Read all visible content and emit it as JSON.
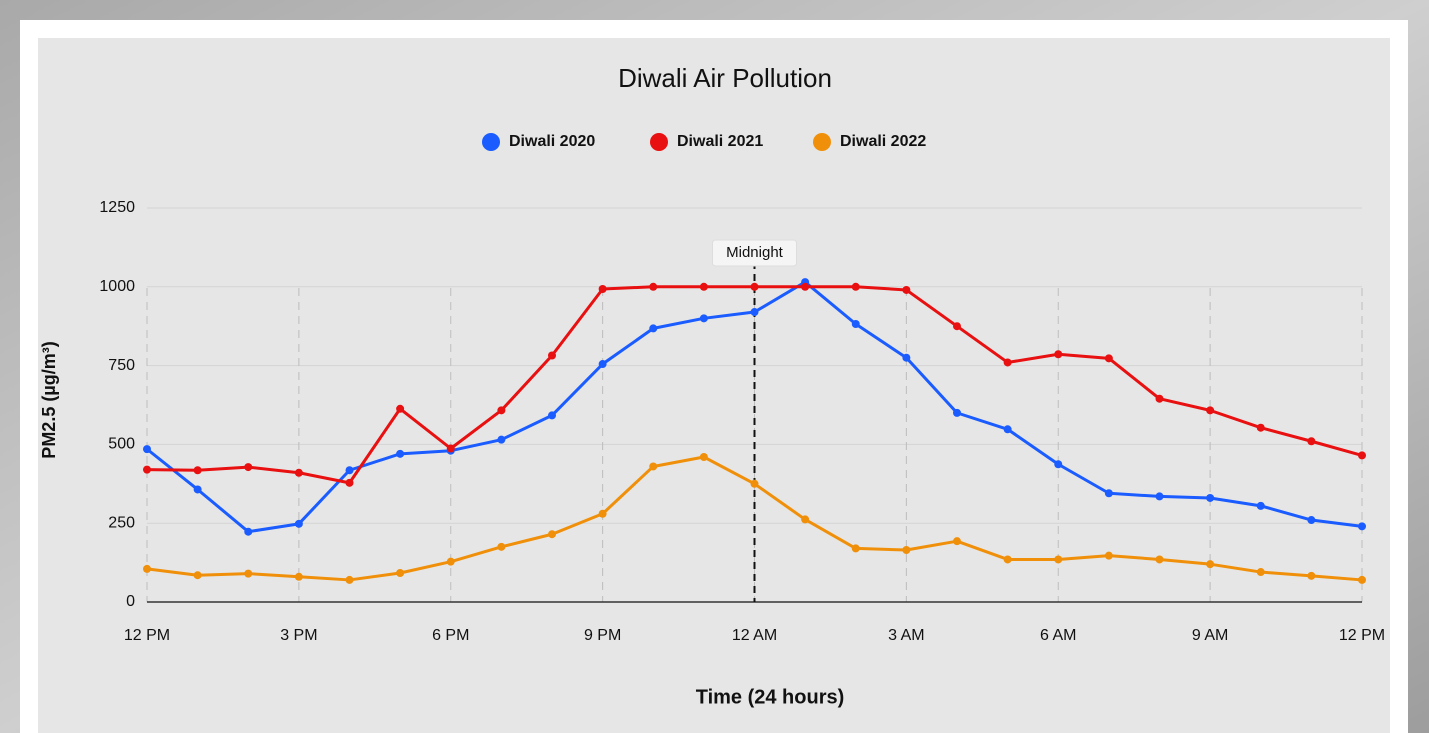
{
  "chart_data": {
    "type": "line",
    "title": "Diwali Air Pollution",
    "x_label": "Time (24 hours)",
    "y_label": "PM2.5 (µg/m³)",
    "x": [
      0,
      1,
      2,
      3,
      4,
      5,
      6,
      7,
      8,
      9,
      10,
      11,
      12,
      13,
      14,
      15,
      16,
      17,
      18,
      19,
      20,
      21,
      22,
      23,
      24
    ],
    "xlim": [
      0,
      24
    ],
    "xticks": [
      {
        "value": 0,
        "label": "12 PM"
      },
      {
        "value": 3,
        "label": "3 PM"
      },
      {
        "value": 6,
        "label": "6 PM"
      },
      {
        "value": 9,
        "label": "9 PM"
      },
      {
        "value": 12,
        "label": "12 AM"
      },
      {
        "value": 15,
        "label": "3 AM"
      },
      {
        "value": 18,
        "label": "6 AM"
      },
      {
        "value": 21,
        "label": "9 AM"
      },
      {
        "value": 24,
        "label": "12 PM"
      }
    ],
    "ylim": [
      0,
      1250
    ],
    "yticks": [
      0,
      250,
      500,
      750,
      1000,
      1250
    ],
    "grid": true,
    "legend": "top",
    "annotation": {
      "text": "Midnight",
      "x": 12
    },
    "series": [
      {
        "name": "Diwali 2020",
        "color": "#1a5cff",
        "values": [
          485,
          357,
          223,
          248,
          418,
          470,
          480,
          515,
          592,
          755,
          868,
          900,
          920,
          1015,
          882,
          775,
          600,
          548,
          437,
          345,
          335,
          330,
          305,
          260,
          240
        ]
      },
      {
        "name": "Diwali 2021",
        "color": "#e81010",
        "values": [
          420,
          418,
          428,
          410,
          378,
          613,
          487,
          608,
          782,
          993,
          1000,
          1000,
          1000,
          1000,
          1000,
          990,
          875,
          760,
          786,
          773,
          645,
          608,
          553,
          510,
          465
        ]
      },
      {
        "name": "Diwali 2022",
        "color": "#f0900a",
        "values": [
          105,
          85,
          90,
          80,
          70,
          92,
          128,
          175,
          215,
          280,
          430,
          460,
          375,
          262,
          170,
          165,
          193,
          135,
          135,
          147,
          135,
          120,
          95,
          83,
          70
        ]
      }
    ]
  }
}
